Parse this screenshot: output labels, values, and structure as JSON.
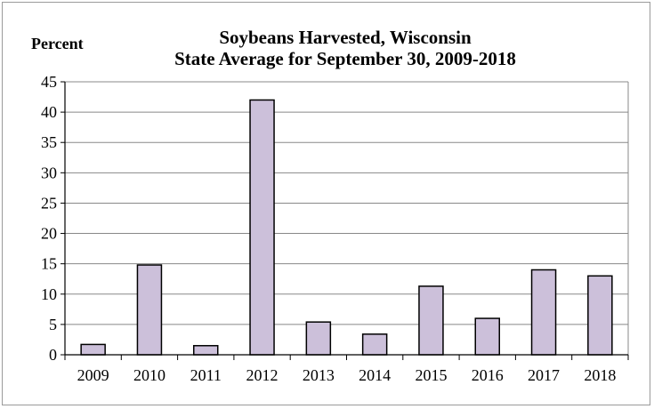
{
  "chart_data": {
    "type": "bar",
    "title": "Soybeans Harvested, Wisconsin",
    "subtitle": "State Average for September 30, 2009-2018",
    "ylabel": "Percent",
    "xlabel": "",
    "categories": [
      "2009",
      "2010",
      "2011",
      "2012",
      "2013",
      "2014",
      "2015",
      "2016",
      "2017",
      "2018"
    ],
    "values": [
      1.7,
      14.8,
      1.5,
      42,
      5.4,
      3.4,
      11.3,
      6,
      14,
      13
    ],
    "ylim": [
      0,
      45
    ],
    "yticks": [
      "0",
      "5",
      "10",
      "15",
      "20",
      "25",
      "30",
      "35",
      "40",
      "45"
    ],
    "grid": true,
    "legend": "none",
    "colors": {
      "bar": "#ccc0da",
      "bar_edge": "#000000",
      "grid": "#888888",
      "axis": "#000000"
    }
  }
}
